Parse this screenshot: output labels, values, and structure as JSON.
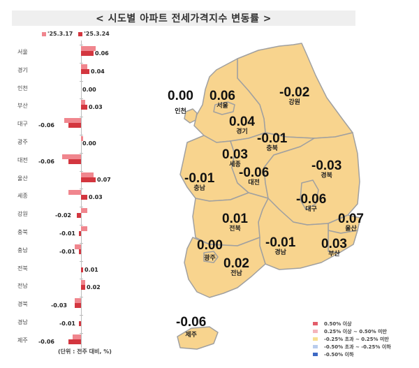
{
  "title": "< 시도별 아파트 전세가격지수 변동률 >",
  "unit_note": "(단위 : 전주 대비, %)",
  "colors": {
    "prev_week": "#f0868e",
    "cur_week": "#d3363f",
    "map_fill": "#f8d48e",
    "map_border": "#a0a0a0"
  },
  "chart_data": [
    {
      "type": "bar",
      "orientation": "horizontal",
      "title": "시도별 아파트 전세가격지수 변동률",
      "xlabel": "전주 대비 (%)",
      "categories": [
        "서울",
        "경기",
        "인천",
        "부산",
        "대구",
        "광주",
        "대전",
        "울산",
        "세종",
        "강원",
        "충북",
        "충남",
        "전북",
        "전남",
        "경북",
        "경남",
        "제주"
      ],
      "series": [
        {
          "name": "'25.3.17",
          "values": [
            0.07,
            0.03,
            0.0,
            0.02,
            -0.08,
            0.01,
            -0.09,
            0.06,
            -0.06,
            0.03,
            0.03,
            -0.03,
            0.0,
            0.02,
            -0.03,
            0.0,
            -0.04
          ]
        },
        {
          "name": "'25.3.24",
          "values": [
            0.06,
            0.04,
            0.0,
            0.03,
            -0.06,
            0.0,
            -0.06,
            0.07,
            0.03,
            -0.02,
            -0.01,
            -0.01,
            0.01,
            0.02,
            -0.03,
            -0.01,
            -0.06
          ]
        }
      ],
      "data_labels": [
        "0.06",
        "0.04",
        "0.00",
        "0.03",
        "-0.06",
        "0.00",
        "-0.06",
        "0.07",
        "0.03",
        "-0.02",
        "-0.01",
        "-0.01",
        "0.01",
        "0.02",
        "-0.03",
        "-0.01",
        "-0.06"
      ],
      "legend": [
        "'25.3.17",
        "'25.3.24"
      ],
      "legend_position": "top"
    },
    {
      "type": "choropleth-map",
      "title": "시도별 전세가격지수 변동률 지도",
      "regions": [
        {
          "name": "인천",
          "value": "0.00"
        },
        {
          "name": "서울",
          "value": "0.06"
        },
        {
          "name": "경기",
          "value": "0.04"
        },
        {
          "name": "강원",
          "value": "-0.02"
        },
        {
          "name": "충북",
          "value": "-0.01"
        },
        {
          "name": "세종",
          "value": "0.03"
        },
        {
          "name": "대전",
          "value": "-0.06"
        },
        {
          "name": "충남",
          "value": "-0.01"
        },
        {
          "name": "경북",
          "value": "-0.03"
        },
        {
          "name": "대구",
          "value": "-0.06"
        },
        {
          "name": "울산",
          "value": "0.07"
        },
        {
          "name": "전북",
          "value": "0.01"
        },
        {
          "name": "광주",
          "value": "0.00"
        },
        {
          "name": "전남",
          "value": "0.02"
        },
        {
          "name": "경남",
          "value": "-0.01"
        },
        {
          "name": "부산",
          "value": "0.03"
        },
        {
          "name": "제주",
          "value": "-0.06"
        }
      ],
      "legend": [
        {
          "label": "0.50% 이상",
          "color": "#e35d6a"
        },
        {
          "label": "0.25% 이상 ~ 0.50% 미만",
          "color": "#f5b5bb"
        },
        {
          "label": "-0.25% 초과 ~ 0.25% 미만",
          "color": "#f7df8f"
        },
        {
          "label": "-0.50% 초과 ~ -0.25% 이하",
          "color": "#b9ccec"
        },
        {
          "label": "-0.50% 이하",
          "color": "#3d68c4"
        }
      ]
    }
  ],
  "bar_rows": [
    {
      "region": "서울",
      "prev": 0.07,
      "cur": 0.06,
      "label": "0.06"
    },
    {
      "region": "경기",
      "prev": 0.03,
      "cur": 0.04,
      "label": "0.04"
    },
    {
      "region": "인천",
      "prev": 0.0,
      "cur": 0.0,
      "label": "0.00"
    },
    {
      "region": "부산",
      "prev": 0.02,
      "cur": 0.03,
      "label": "0.03"
    },
    {
      "region": "대구",
      "prev": -0.08,
      "cur": -0.06,
      "label": "-0.06"
    },
    {
      "region": "광주",
      "prev": 0.01,
      "cur": 0.0,
      "label": "0.00"
    },
    {
      "region": "대전",
      "prev": -0.09,
      "cur": -0.06,
      "label": "-0.06"
    },
    {
      "region": "울산",
      "prev": 0.06,
      "cur": 0.07,
      "label": "0.07"
    },
    {
      "region": "세종",
      "prev": -0.06,
      "cur": 0.03,
      "label": "0.03"
    },
    {
      "region": "강원",
      "prev": 0.03,
      "cur": -0.02,
      "label": "-0.02"
    },
    {
      "region": "충북",
      "prev": 0.03,
      "cur": -0.01,
      "label": "-0.01"
    },
    {
      "region": "충남",
      "prev": -0.03,
      "cur": -0.01,
      "label": "-0.01"
    },
    {
      "region": "전북",
      "prev": 0.0,
      "cur": 0.01,
      "label": "0.01"
    },
    {
      "region": "전남",
      "prev": 0.02,
      "cur": 0.02,
      "label": "0.02"
    },
    {
      "region": "경북",
      "prev": -0.03,
      "cur": -0.03,
      "label": "-0.03"
    },
    {
      "region": "경남",
      "prev": 0.0,
      "cur": -0.01,
      "label": "-0.01"
    },
    {
      "region": "제주",
      "prev": -0.04,
      "cur": -0.06,
      "label": "-0.06"
    }
  ],
  "bar_legend": {
    "prev": "'25.3.17",
    "cur": "'25.3.24"
  },
  "map_labels": {
    "incheon": {
      "value": "0.00",
      "name": "인천"
    },
    "seoul": {
      "value": "0.06",
      "name": "서울"
    },
    "gyeonggi": {
      "value": "0.04",
      "name": "경기"
    },
    "gangwon": {
      "value": "-0.02",
      "name": "강원"
    },
    "chungbuk": {
      "value": "-0.01",
      "name": "충북"
    },
    "sejong": {
      "value": "0.03",
      "name": "세종"
    },
    "daejeon": {
      "value": "-0.06",
      "name": "대전"
    },
    "chungnam": {
      "value": "-0.01",
      "name": "충남"
    },
    "gyeongbuk": {
      "value": "-0.03",
      "name": "경북"
    },
    "daegu": {
      "value": "-0.06",
      "name": "대구"
    },
    "ulsan": {
      "value": "0.07",
      "name": "울산"
    },
    "jeonbuk": {
      "value": "0.01",
      "name": "전북"
    },
    "gwangju": {
      "value": "0.00",
      "name": "광주"
    },
    "jeonnam": {
      "value": "0.02",
      "name": "전남"
    },
    "gyeongnam": {
      "value": "-0.01",
      "name": "경남"
    },
    "busan": {
      "value": "0.03",
      "name": "부산"
    },
    "jeju": {
      "value": "-0.06",
      "name": "제주"
    }
  },
  "map_legend": [
    {
      "label": "0.50% 이상",
      "color": "#e35d6a"
    },
    {
      "label": "0.25% 이상 ~ 0.50% 미만",
      "color": "#f5b5bb"
    },
    {
      "label": "-0.25% 초과 ~ 0.25% 미만",
      "color": "#f7df8f"
    },
    {
      "label": "-0.50% 초과 ~ -0.25% 이하",
      "color": "#b9ccec"
    },
    {
      "label": "-0.50% 이하",
      "color": "#3d68c4"
    }
  ]
}
